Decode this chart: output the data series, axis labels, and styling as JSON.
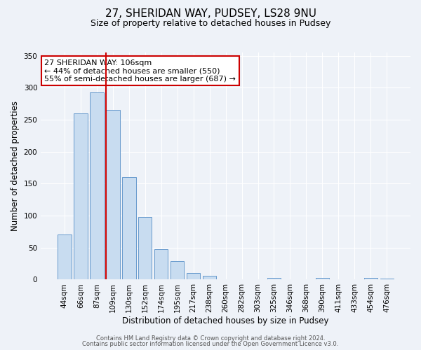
{
  "title": "27, SHERIDAN WAY, PUDSEY, LS28 9NU",
  "subtitle": "Size of property relative to detached houses in Pudsey",
  "xlabel": "Distribution of detached houses by size in Pudsey",
  "ylabel": "Number of detached properties",
  "bar_labels": [
    "44sqm",
    "66sqm",
    "87sqm",
    "109sqm",
    "130sqm",
    "152sqm",
    "174sqm",
    "195sqm",
    "217sqm",
    "238sqm",
    "260sqm",
    "282sqm",
    "303sqm",
    "325sqm",
    "346sqm",
    "368sqm",
    "390sqm",
    "411sqm",
    "433sqm",
    "454sqm",
    "476sqm"
  ],
  "bar_values": [
    70,
    260,
    293,
    265,
    160,
    98,
    48,
    29,
    10,
    6,
    0,
    0,
    0,
    3,
    0,
    0,
    3,
    0,
    0,
    3,
    2
  ],
  "bar_color": "#c8dcf0",
  "bar_edge_color": "#6699cc",
  "vline_color": "#cc0000",
  "vline_pos": 2.575,
  "ylim_max": 355,
  "yticks": [
    0,
    50,
    100,
    150,
    200,
    250,
    300,
    350
  ],
  "annotation_title": "27 SHERIDAN WAY: 106sqm",
  "annotation_line1": "← 44% of detached houses are smaller (550)",
  "annotation_line2": "55% of semi-detached houses are larger (687) →",
  "annotation_box_color": "#ffffff",
  "annotation_box_edge": "#cc0000",
  "footer1": "Contains HM Land Registry data © Crown copyright and database right 2024.",
  "footer2": "Contains public sector information licensed under the Open Government Licence v3.0.",
  "background_color": "#eef2f8",
  "grid_color": "#ffffff",
  "title_fontsize": 11,
  "subtitle_fontsize": 9,
  "xlabel_fontsize": 8.5,
  "ylabel_fontsize": 8.5,
  "tick_fontsize": 7.5,
  "annotation_fontsize": 8,
  "footer_fontsize": 6
}
